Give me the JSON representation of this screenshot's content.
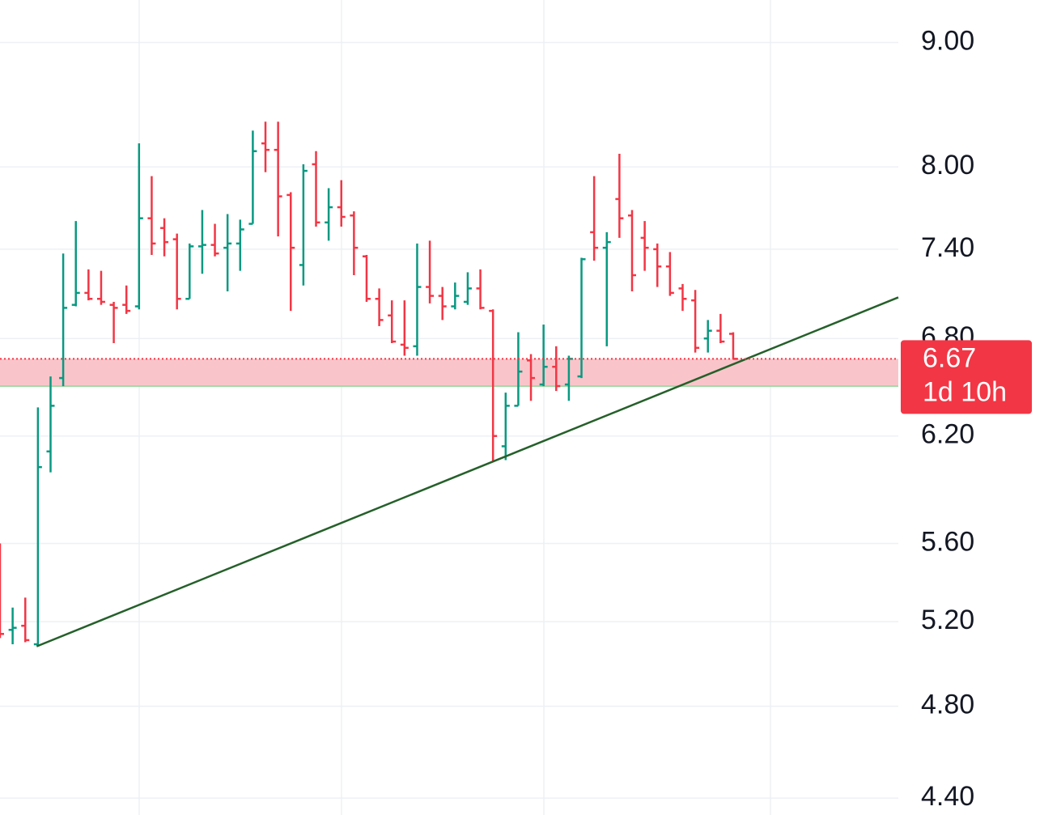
{
  "chart_data": {
    "type": "ohlc",
    "log": true,
    "grid": true,
    "ylim": [
      4.33,
      9.37
    ],
    "yticks": [
      {
        "value": 4.4,
        "label": "4.40"
      },
      {
        "value": 4.8,
        "label": "4.80"
      },
      {
        "value": 5.2,
        "label": "5.20"
      },
      {
        "value": 5.6,
        "label": "5.60"
      },
      {
        "value": 6.2,
        "label": "6.20"
      },
      {
        "value": 6.8,
        "label": "6.80"
      },
      {
        "value": 7.4,
        "label": "7.40"
      },
      {
        "value": 8,
        "label": "8.00"
      },
      {
        "value": 9,
        "label": "9.00"
      }
    ],
    "up_color": "#089981",
    "down_color": "#f23645",
    "open": [
      5.3,
      5.16,
      5.18,
      5.09,
      6.11,
      6.55,
      7.02,
      7.1,
      7.06,
      7.02,
      7.02,
      7.01,
      7.62,
      7.55,
      7.47,
      7.06,
      7.42,
      7.43,
      7.41,
      7.44,
      7.58,
      8.18,
      8.13,
      7.79,
      7.29,
      8.02,
      7.59,
      7.7,
      7.64,
      7.35,
      7.06,
      6.95,
      6.76,
      6.75,
      7.14,
      7.08,
      7.01,
      7.04,
      7.13,
      6.98,
      6.14,
      6.38,
      6.66,
      6.51,
      6.62,
      6.51,
      6.56,
      7.52,
      7.41,
      7.76,
      7.64,
      7.48,
      7.4,
      7.28,
      7.13,
      7.05,
      6.8,
      6.85,
      6.83
    ],
    "high": [
      5.6,
      5.27,
      5.32,
      6.37,
      6.56,
      7.37,
      7.6,
      7.26,
      7.25,
      7.04,
      7.15,
      8.18,
      7.93,
      7.62,
      7.51,
      7.44,
      7.68,
      7.58,
      7.65,
      7.61,
      8.28,
      8.35,
      8.35,
      7.81,
      8.02,
      8.12,
      7.84,
      7.9,
      7.67,
      7.36,
      7.13,
      7.05,
      7.05,
      7.44,
      7.46,
      7.14,
      7.17,
      7.24,
      7.26,
      6.99,
      6.46,
      6.84,
      6.7,
      6.89,
      6.75,
      6.69,
      7.34,
      7.93,
      7.52,
      8.1,
      7.68,
      7.6,
      7.44,
      7.38,
      7.16,
      7.12,
      6.92,
      6.96,
      6.84
    ],
    "low": [
      5.12,
      5.09,
      5.1,
      5.08,
      5.99,
      6.5,
      7.01,
      7.05,
      7.02,
      6.77,
      6.96,
      6.99,
      7.36,
      7.35,
      6.99,
      7.06,
      7.23,
      7.35,
      7.11,
      7.25,
      7.58,
      7.96,
      7.49,
      6.98,
      7.15,
      7.56,
      7.46,
      7.56,
      7.22,
      7.04,
      6.88,
      6.77,
      6.69,
      6.69,
      7.03,
      6.92,
      6.99,
      7.02,
      6.99,
      6.05,
      6.06,
      6.38,
      6.41,
      6.5,
      6.47,
      6.41,
      6.55,
      7.32,
      6.75,
      7.48,
      7.11,
      7.25,
      7.14,
      7.08,
      6.98,
      6.71,
      6.71,
      6.77,
      6.67
    ],
    "close": [
      5.14,
      5.17,
      5.11,
      6.02,
      6.38,
      7.0,
      7.1,
      7.06,
      7.04,
      7.0,
      6.98,
      7.62,
      7.44,
      7.45,
      7.06,
      7.42,
      7.43,
      7.37,
      7.44,
      7.54,
      8.12,
      8.13,
      7.78,
      7.41,
      7.97,
      7.59,
      7.7,
      7.63,
      7.41,
      7.06,
      6.92,
      6.78,
      6.74,
      7.14,
      7.08,
      7.01,
      7.08,
      7.13,
      7.0,
      6.2,
      6.38,
      6.59,
      6.55,
      6.62,
      6.5,
      6.67,
      7.33,
      7.41,
      7.45,
      7.62,
      7.22,
      7.41,
      7.28,
      7.1,
      7.06,
      6.74,
      6.85,
      6.78,
      6.67
    ],
    "zone": {
      "from": 6.5,
      "to": 6.67,
      "color": "#f9c5ca",
      "edge_color": "#a5d6a7"
    },
    "trendline": {
      "color": "#25602a",
      "points": [
        [
          2.9,
          5.08
        ],
        [
          71.06,
          7.07
        ]
      ]
    },
    "last_price": {
      "value": 6.67,
      "countdown": "1d 10h",
      "color": "#f23645"
    }
  }
}
